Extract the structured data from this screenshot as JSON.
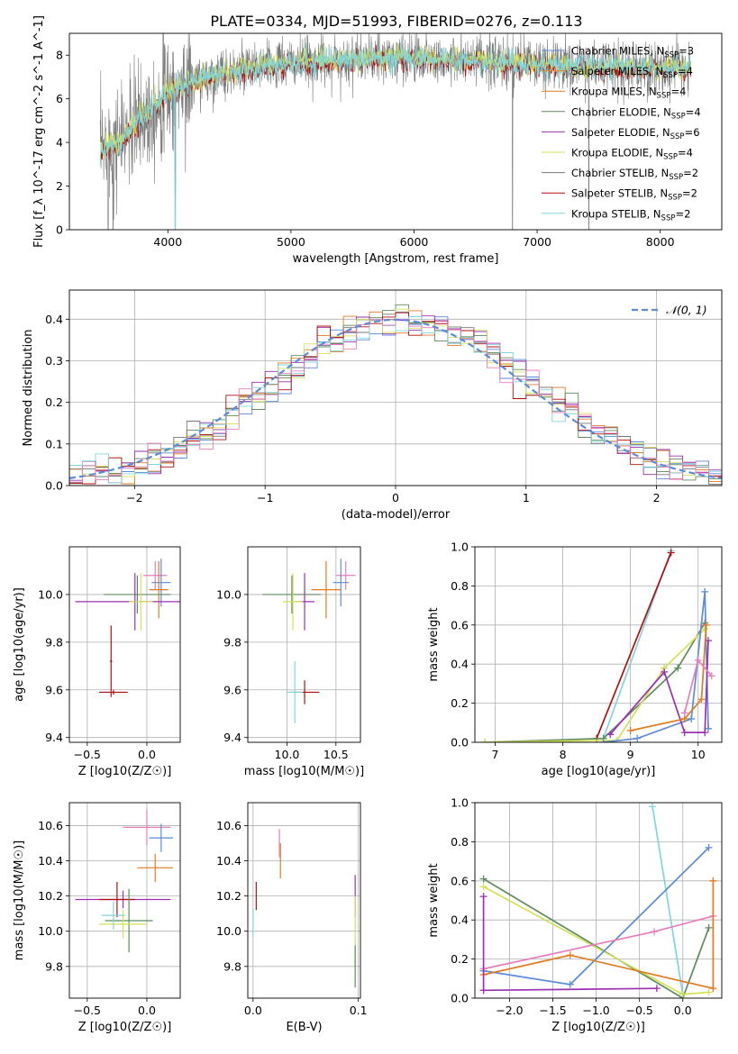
{
  "figure_title": "PLATE=0334, MJD=51993, FIBERID=0276, z=0.113",
  "colors": {
    "Chabrier MILES": "#5b8bd9",
    "Salpeter MILES": "#e8882a",
    "Kroupa MILES": "#e07b20",
    "Chabrier ELODIE": "#5e8c5e",
    "Salpeter ELODIE": "#9b30b0",
    "Kroupa ELODIE": "#d4e157",
    "Chabrier STELIB": "#777777",
    "Salpeter STELIB": "#b01010",
    "Kroupa STELIB": "#7fd6dc",
    "Pink": "#e57fbf",
    "Normal": "#5b8bd9"
  },
  "chart_data": [
    {
      "type": "line",
      "id": "spectrum",
      "title": "PLATE=0334, MJD=51993, FIBERID=0276, z=0.113",
      "xlabel": "wavelength [Angstrom, rest frame]",
      "ylabel": "Flux [f_λ 10^-17 erg cm^-2 s^-1 A^-1]",
      "xlim": [
        3200,
        8500
      ],
      "ylim": [
        0,
        9
      ],
      "xticks": [
        "4000",
        "5000",
        "6000",
        "7000",
        "8000"
      ],
      "yticks": [
        "0",
        "2",
        "4",
        "6",
        "8"
      ],
      "legend_position": "top-right",
      "legend": [
        "Chabrier MILES, N_SSP=3",
        "Salpeter MILES, N_SSP=4",
        "Kroupa MILES, N_SSP=4",
        "Chabrier ELODIE, N_SSP=4",
        "Salpeter ELODIE, N_SSP=6",
        "Kroupa ELODIE, N_SSP=4",
        "Chabrier STELIB, N_SSP=2",
        "Salpeter STELIB, N_SSP=2",
        "Kroupa STELIB, N_SSP=2"
      ],
      "continuum": {
        "x": [
          3450,
          3600,
          3800,
          4000,
          4200,
          4400,
          4600,
          4800,
          5000,
          5200,
          5500,
          6000,
          6500,
          7000,
          7400,
          8000,
          8250
        ],
        "y": [
          3.6,
          4.0,
          5.2,
          6.3,
          6.8,
          7.1,
          7.3,
          7.5,
          7.6,
          7.7,
          7.8,
          7.9,
          7.7,
          7.6,
          7.5,
          7.4,
          7.4
        ]
      }
    },
    {
      "type": "line",
      "id": "residual_hist",
      "xlabel": "(data-model)/error",
      "ylabel": "Normed distribution",
      "xlim": [
        -2.5,
        2.5
      ],
      "ylim": [
        0,
        0.47
      ],
      "xticks": [
        "-2",
        "-1",
        "0",
        "1",
        "2"
      ],
      "yticks": [
        "0.0",
        "0.1",
        "0.2",
        "0.3",
        "0.4"
      ],
      "grid": true,
      "legend": [
        "N(0,1)"
      ],
      "legend_label": "𝒩(0, 1)",
      "legend_position": "top-right"
    },
    {
      "type": "scatter",
      "id": "age_vs_Z",
      "xlabel": "Z [log10(Z/Z☉)]",
      "ylabel": "age [log10(age/yr)]",
      "xlim": [
        -0.65,
        0.28
      ],
      "ylim": [
        9.38,
        10.2
      ],
      "xticks": [
        "-0.5",
        "0.0"
      ],
      "yticks": [
        "9.4",
        "9.6",
        "9.8",
        "10.0"
      ],
      "grid": true,
      "points": [
        {
          "x": 0.07,
          "y": 10.08,
          "xerr": 0.1,
          "yerr": 0.06,
          "color": "#e57fbf"
        },
        {
          "x": 0.12,
          "y": 10.05,
          "xerr": 0.08,
          "yerr": 0.1,
          "color": "#5b8bd9"
        },
        {
          "x": 0.1,
          "y": 10.02,
          "xerr": 0.08,
          "yerr": 0.12,
          "color": "#e07b20"
        },
        {
          "x": -0.08,
          "y": 10.0,
          "xerr": 0.28,
          "yerr": 0.08,
          "color": "#5e8c5e"
        },
        {
          "x": -0.1,
          "y": 9.97,
          "xerr": 0.5,
          "yerr": 0.12,
          "color": "#9b30b0"
        },
        {
          "x": -0.05,
          "y": 9.97,
          "xerr": 0.1,
          "yerr": 0.12,
          "color": "#d4e157"
        },
        {
          "x": -0.3,
          "y": 9.72,
          "xerr": 0.01,
          "yerr": 0.15,
          "color": "#b01010"
        },
        {
          "x": -0.28,
          "y": 9.59,
          "xerr": 0.12,
          "yerr": 0.01,
          "color": "#7fd6dc"
        },
        {
          "x": -0.28,
          "y": 9.59,
          "xerr": 0.12,
          "yerr": 0.01,
          "color": "#b01010"
        }
      ]
    },
    {
      "type": "scatter",
      "id": "age_vs_mass",
      "xlabel": "mass [log10(M/M☉)]",
      "ylabel": "",
      "xlim": [
        9.6,
        10.75
      ],
      "ylim": [
        9.38,
        10.2
      ],
      "xticks": [
        "10.0",
        "10.5"
      ],
      "yticks": [
        "9.4",
        "9.6",
        "9.8",
        "10.0"
      ],
      "grid": true,
      "points": [
        {
          "x": 10.6,
          "y": 10.08,
          "xerr": 0.1,
          "yerr": 0.06,
          "color": "#e57fbf"
        },
        {
          "x": 10.55,
          "y": 10.05,
          "xerr": 0.08,
          "yerr": 0.1,
          "color": "#5b8bd9"
        },
        {
          "x": 10.4,
          "y": 10.02,
          "xerr": 0.15,
          "yerr": 0.12,
          "color": "#e07b20"
        },
        {
          "x": 10.05,
          "y": 10.0,
          "xerr": 0.3,
          "yerr": 0.08,
          "color": "#5e8c5e"
        },
        {
          "x": 10.18,
          "y": 9.97,
          "xerr": 0.1,
          "yerr": 0.12,
          "color": "#9b30b0"
        },
        {
          "x": 10.06,
          "y": 9.97,
          "xerr": 0.1,
          "yerr": 0.12,
          "color": "#d4e157"
        },
        {
          "x": 10.18,
          "y": 9.59,
          "xerr": 0.15,
          "yerr": 0.05,
          "color": "#b01010"
        },
        {
          "x": 10.08,
          "y": 9.59,
          "xerr": 0.08,
          "yerr": 0.13,
          "color": "#7fd6dc"
        }
      ]
    },
    {
      "type": "line",
      "id": "massweight_vs_age",
      "xlabel": "age [log10(age/yr)]",
      "ylabel": "mass weight",
      "xlim": [
        6.7,
        10.35
      ],
      "ylim": [
        0,
        1
      ],
      "xticks": [
        "7",
        "8",
        "9",
        "10"
      ],
      "yticks": [
        "0.0",
        "0.2",
        "0.4",
        "0.6",
        "0.8",
        "1.0"
      ],
      "grid": true,
      "series": [
        {
          "color": "#7fd6dc",
          "x": [
            8.6,
            9.6
          ],
          "y": [
            0.02,
            0.98
          ]
        },
        {
          "color": "#b01010",
          "x": [
            8.5,
            9.6
          ],
          "y": [
            0.02,
            0.97
          ]
        },
        {
          "color": "#5e8c5e",
          "x": [
            6.85,
            8.6,
            9.7,
            10.1
          ],
          "y": [
            0.0,
            0.02,
            0.38,
            0.61
          ]
        },
        {
          "color": "#d4e157",
          "x": [
            6.85,
            8.8,
            9.5,
            10.1
          ],
          "y": [
            0.0,
            0.01,
            0.38,
            0.58
          ]
        },
        {
          "color": "#5b8bd9",
          "x": [
            8.6,
            9.1,
            9.9,
            10.1,
            10.15
          ],
          "y": [
            0.0,
            0.02,
            0.12,
            0.77,
            0.07
          ]
        },
        {
          "color": "#9b30b0",
          "x": [
            8.7,
            9.5,
            9.8,
            10.1,
            10.15
          ],
          "y": [
            0.04,
            0.36,
            0.05,
            0.05,
            0.52
          ]
        },
        {
          "color": "#e07b20",
          "x": [
            9.0,
            9.8,
            10.05,
            10.12
          ],
          "y": [
            0.06,
            0.12,
            0.22,
            0.6
          ]
        },
        {
          "color": "#e57fbf",
          "x": [
            9.8,
            10.0,
            10.2
          ],
          "y": [
            0.15,
            0.42,
            0.34
          ]
        }
      ]
    },
    {
      "type": "scatter",
      "id": "mass_vs_Z",
      "xlabel": "Z [log10(Z/Z☉)]",
      "ylabel": "mass [log10(M/M☉)]",
      "xlim": [
        -0.65,
        0.28
      ],
      "ylim": [
        9.62,
        10.73
      ],
      "xticks": [
        "-0.5",
        "0.0"
      ],
      "yticks": [
        "9.8",
        "10.0",
        "10.2",
        "10.4",
        "10.6"
      ],
      "grid": true,
      "points": [
        {
          "x": 0.0,
          "y": 10.59,
          "xerr": 0.2,
          "yerr": 0.1,
          "color": "#e57fbf"
        },
        {
          "x": 0.12,
          "y": 10.53,
          "xerr": 0.1,
          "yerr": 0.08,
          "color": "#5b8bd9"
        },
        {
          "x": 0.07,
          "y": 10.36,
          "xerr": 0.15,
          "yerr": 0.08,
          "color": "#e07b20"
        },
        {
          "x": -0.2,
          "y": 10.18,
          "xerr": 0.4,
          "yerr": 0.05,
          "color": "#9b30b0"
        },
        {
          "x": -0.25,
          "y": 10.18,
          "xerr": 0.15,
          "yerr": 0.1,
          "color": "#b01010"
        },
        {
          "x": -0.15,
          "y": 10.06,
          "xerr": 0.2,
          "yerr": 0.18,
          "color": "#5e8c5e"
        },
        {
          "x": -0.2,
          "y": 10.04,
          "xerr": 0.2,
          "yerr": 0.08,
          "color": "#d4e157"
        },
        {
          "x": -0.28,
          "y": 10.09,
          "xerr": 0.1,
          "yerr": 0.08,
          "color": "#7fd6dc"
        }
      ]
    },
    {
      "type": "scatter",
      "id": "mass_vs_ebv",
      "xlabel": "E(B-V)",
      "ylabel": "",
      "xlim": [
        -0.005,
        0.102
      ],
      "ylim": [
        9.62,
        10.73
      ],
      "xticks": [
        "0.0",
        "0.1"
      ],
      "yticks": [
        "9.8",
        "10.0",
        "10.2",
        "10.4",
        "10.6"
      ],
      "grid": true,
      "points": [
        {
          "x": 0.025,
          "y": 10.5,
          "xerr": 0.0,
          "yerr": 0.08,
          "color": "#e57fbf"
        },
        {
          "x": 0.026,
          "y": 10.4,
          "xerr": 0.0,
          "yerr": 0.1,
          "color": "#e07b20"
        },
        {
          "x": 0.003,
          "y": 10.2,
          "xerr": 0.0,
          "yerr": 0.08,
          "color": "#b01010"
        },
        {
          "x": 0.0,
          "y": 10.05,
          "xerr": 0.0,
          "yerr": 0.08,
          "color": "#7fd6dc"
        },
        {
          "x": 0.097,
          "y": 10.2,
          "xerr": 0.0,
          "yerr": 0.12,
          "color": "#9b30b0"
        },
        {
          "x": 0.097,
          "y": 10.0,
          "xerr": 0.0,
          "yerr": 0.2,
          "color": "#d4e157"
        },
        {
          "x": 0.097,
          "y": 9.8,
          "xerr": 0.0,
          "yerr": 0.12,
          "color": "#5e8c5e"
        }
      ]
    },
    {
      "type": "line",
      "id": "massweight_vs_Z",
      "xlabel": "Z [log10(Z/Z☉)]",
      "ylabel": "mass weight",
      "xlim": [
        -2.4,
        0.45
      ],
      "ylim": [
        0,
        1
      ],
      "xticks": [
        "-2.0",
        "-1.5",
        "-1.0",
        "-0.5",
        "0.0"
      ],
      "yticks": [
        "0.0",
        "0.2",
        "0.4",
        "0.6",
        "0.8",
        "1.0"
      ],
      "grid": true,
      "series": [
        {
          "color": "#7fd6dc",
          "x": [
            -0.35,
            0.0
          ],
          "y": [
            0.98,
            0.02
          ]
        },
        {
          "color": "#5e8c5e",
          "x": [
            -2.3,
            0.0,
            0.3
          ],
          "y": [
            0.61,
            0.0,
            0.36
          ]
        },
        {
          "color": "#d4e157",
          "x": [
            -2.3,
            0.0,
            0.3
          ],
          "y": [
            0.57,
            0.02,
            0.03
          ]
        },
        {
          "color": "#5b8bd9",
          "x": [
            -2.3,
            -1.3,
            0.3
          ],
          "y": [
            0.14,
            0.07,
            0.77
          ]
        },
        {
          "color": "#e57fbf",
          "x": [
            -2.3,
            -0.33,
            0.35
          ],
          "y": [
            0.15,
            0.34,
            0.42
          ]
        },
        {
          "color": "#e07b20",
          "x": [
            -2.3,
            -1.3,
            0.35,
            0.35
          ],
          "y": [
            0.12,
            0.22,
            0.05,
            0.6
          ]
        },
        {
          "color": "#9b30b0",
          "x": [
            -2.3,
            -2.3,
            -0.3
          ],
          "y": [
            0.52,
            0.04,
            0.05
          ]
        }
      ]
    }
  ]
}
